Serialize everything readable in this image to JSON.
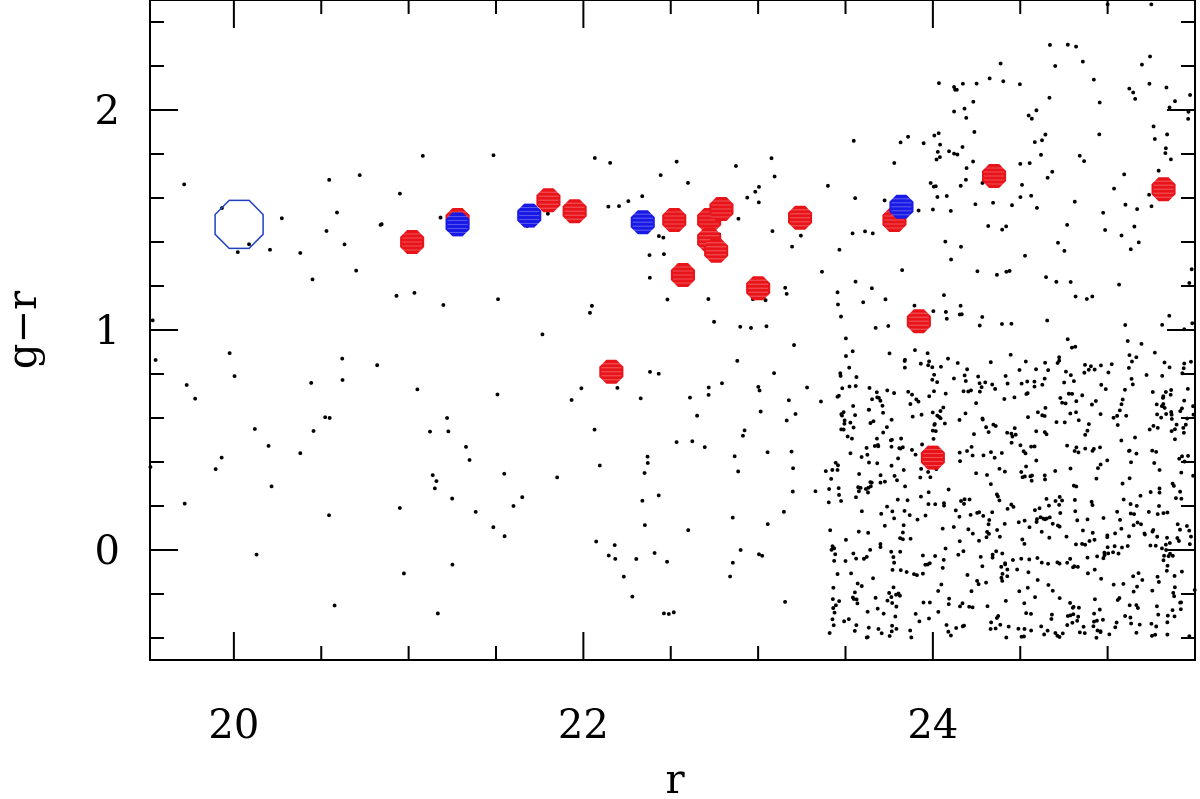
{
  "chart_data": {
    "type": "scatter",
    "title": "",
    "xlabel": "r",
    "ylabel": "g−r",
    "xlim": [
      19.52,
      25.5
    ],
    "ylim": [
      -0.5,
      2.5
    ],
    "x_ticks": [
      20,
      22,
      24
    ],
    "x_tick_labels": [
      "20",
      "22",
      "24"
    ],
    "y_ticks": [
      0,
      1,
      2
    ],
    "y_tick_labels": [
      "0",
      "1",
      "2"
    ],
    "grid": false,
    "legend": "none",
    "colors": {
      "red": "#e8141a",
      "blue": "#1a1ae6",
      "black": "#000000",
      "open": "#1f3fbf"
    },
    "series": [
      {
        "marker": "red-filled-octagon",
        "color": "#e8141a",
        "points": [
          [
            21.02,
            1.4
          ],
          [
            21.28,
            1.5
          ],
          [
            21.8,
            1.59
          ],
          [
            21.95,
            1.54
          ],
          [
            22.16,
            0.81
          ],
          [
            22.52,
            1.5
          ],
          [
            22.57,
            1.25
          ],
          [
            22.72,
            1.5
          ],
          [
            22.79,
            1.55
          ],
          [
            22.72,
            1.41
          ],
          [
            22.76,
            1.36
          ],
          [
            23.0,
            1.19
          ],
          [
            23.24,
            1.51
          ],
          [
            23.78,
            1.5
          ],
          [
            23.92,
            1.04
          ],
          [
            24.0,
            0.42
          ],
          [
            24.35,
            1.7
          ],
          [
            25.32,
            1.64
          ]
        ]
      },
      {
        "marker": "blue-filled-octagon",
        "color": "#1a1ae6",
        "points": [
          [
            21.28,
            1.48
          ],
          [
            21.69,
            1.52
          ],
          [
            22.34,
            1.49
          ],
          [
            23.82,
            1.56
          ]
        ]
      },
      {
        "marker": "open-octagon",
        "color": "#1f3fbf",
        "points": [
          [
            20.03,
            1.48
          ]
        ]
      },
      {
        "marker": "dot",
        "color": "#000000",
        "cloud": [
          {
            "x": [
              19.5,
              22.0
            ],
            "y": [
              -0.3,
              1.8
            ],
            "n": 60
          },
          {
            "x": [
              22.0,
              23.5
            ],
            "y": [
              -0.3,
              1.8
            ],
            "n": 110
          },
          {
            "x": [
              23.4,
              25.5
            ],
            "y": [
              -0.4,
              0.9
            ],
            "n": 750
          },
          {
            "x": [
              24.0,
              25.5
            ],
            "y": [
              0.9,
              2.3
            ],
            "n": 130
          },
          {
            "x": [
              23.5,
              24.2
            ],
            "y": [
              0.9,
              1.9
            ],
            "n": 35
          }
        ],
        "extra_points": [
          [
            19.73,
            0.75
          ],
          [
            19.93,
            0.42
          ],
          [
            20.12,
            0.55
          ],
          [
            20.38,
            0.44
          ],
          [
            20.38,
            1.35
          ],
          [
            20.45,
            1.23
          ],
          [
            20.53,
            1.45
          ],
          [
            20.62,
            0.87
          ],
          [
            20.7,
            1.27
          ],
          [
            20.82,
            0.84
          ],
          [
            20.95,
            1.62
          ],
          [
            21.05,
            0.73
          ],
          [
            21.15,
            0.28
          ],
          [
            21.22,
            0.6
          ],
          [
            21.6,
            0.2
          ],
          [
            21.65,
            0.24
          ],
          [
            21.85,
            0.33
          ],
          [
            22.35,
            0.35
          ],
          [
            22.6,
            0.09
          ],
          [
            22.9,
            0.0
          ],
          [
            23.5,
            -0.05
          ],
          [
            23.85,
            -0.1
          ],
          [
            25.1,
            -0.3
          ],
          [
            25.0,
            2.48
          ],
          [
            25.25,
            2.48
          ],
          [
            24.7,
            2.2
          ],
          [
            24.25,
            2.12
          ]
        ]
      }
    ]
  }
}
